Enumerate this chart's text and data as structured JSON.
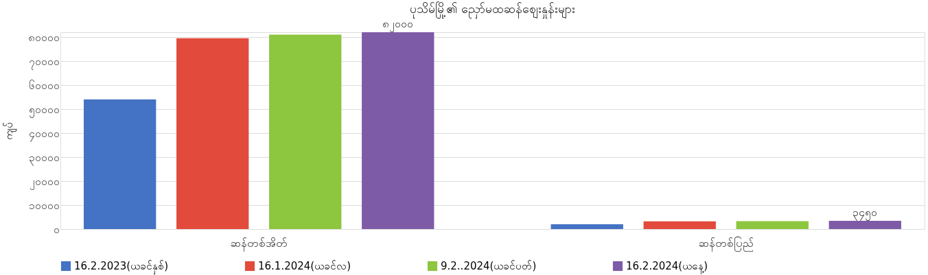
{
  "chart_data": {
    "type": "bar",
    "title": "ပုသိမ်မြို့၏ ညှော်မထဆန်စျေးနှုန်းများ",
    "ylabel": "ကျပ်",
    "categories": [
      "ဆန်တစ်အိတ်",
      "ဆန်တစ်ပြည်"
    ],
    "series": [
      {
        "name": "16.2.2023(ယခင်နှစ်)",
        "color": "#4472c4",
        "values": [
          54000,
          2000
        ]
      },
      {
        "name": "16.1.2024(ယခင်လ)",
        "color": "#e24b3b",
        "values": [
          79500,
          3200
        ]
      },
      {
        "name": "9.2..2024(ယခင်ပတ်)",
        "color": "#8dc63f",
        "values": [
          81000,
          3300
        ]
      },
      {
        "name": "16.2.2024(ယနေ့)",
        "color": "#7e5ba6",
        "values": [
          82000,
          3450
        ],
        "value_labels": [
          "၈၂၀၀၀",
          "၃၄၅၀"
        ]
      }
    ],
    "ylim": [
      0,
      82000
    ],
    "yticks": [
      {
        "value": 0,
        "label": "၀"
      },
      {
        "value": 10000,
        "label": "၁၀၀၀၀"
      },
      {
        "value": 20000,
        "label": "၂၀၀၀၀"
      },
      {
        "value": 30000,
        "label": "၃၀၀၀၀"
      },
      {
        "value": 40000,
        "label": "၄၀၀၀၀"
      },
      {
        "value": 50000,
        "label": "၅၀၀၀၀"
      },
      {
        "value": 60000,
        "label": "၆၀၀၀၀"
      },
      {
        "value": 70000,
        "label": "၇၀၀၀၀"
      },
      {
        "value": 80000,
        "label": "၈၀၀၀၀"
      }
    ],
    "grid": "y",
    "legend": "bottom"
  }
}
